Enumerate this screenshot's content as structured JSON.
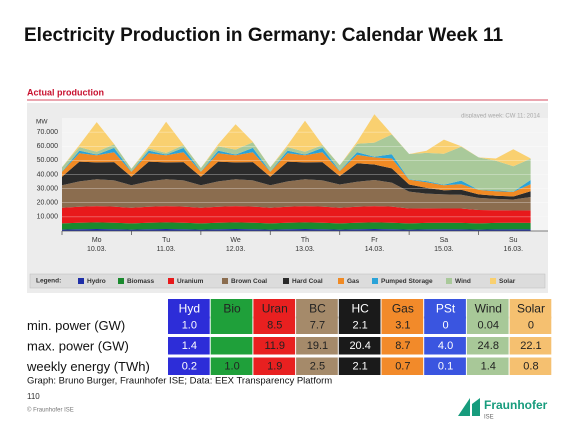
{
  "title": "Electricity Production in Germany: Calendar Week 11",
  "chart_data": {
    "type": "stacked_area",
    "subtitle": "Actual production",
    "annotation": "displayed week: CW 11; 2014",
    "y_label": "MW",
    "legend_title": "Legend:",
    "x_labels": [
      [
        "Mo",
        "10.03."
      ],
      [
        "Tu",
        "11.03."
      ],
      [
        "We",
        "12.03."
      ],
      [
        "Th",
        "13.03."
      ],
      [
        "Fr",
        "14.03."
      ],
      [
        "Sa",
        "15.03."
      ],
      [
        "Su",
        "16.03."
      ]
    ],
    "ylim": [
      0,
      80000
    ],
    "yticks": [
      {
        "value": 10000,
        "label": "10.000"
      },
      {
        "value": 20000,
        "label": "20.000"
      },
      {
        "value": 30000,
        "label": "30.000"
      },
      {
        "value": 40000,
        "label": "40.000"
      },
      {
        "value": 50000,
        "label": "50.000"
      },
      {
        "value": 60000,
        "label": "60.000"
      },
      {
        "value": 70000,
        "label": "70.000"
      }
    ],
    "grid": true,
    "series": [
      {
        "name": "Hydro",
        "color": "#1f2fa8",
        "values": [
          1000,
          1200,
          1400,
          1300,
          1000,
          1200,
          1400,
          1300,
          1000,
          1200,
          1400,
          1300,
          1000,
          1200,
          1400,
          1300,
          1000,
          1200,
          1400,
          1300,
          1000,
          1100,
          1200,
          1100,
          1000,
          1100,
          1200,
          1100
        ]
      },
      {
        "name": "Biomass",
        "color": "#1a8a2e",
        "values": [
          4400,
          4600,
          4700,
          4600,
          4400,
          4600,
          4700,
          4600,
          4400,
          4600,
          4700,
          4600,
          4400,
          4600,
          4700,
          4600,
          4400,
          4600,
          4700,
          4600,
          4400,
          4600,
          4700,
          4600,
          4400,
          4600,
          4700,
          4600
        ]
      },
      {
        "name": "Uranium",
        "color": "#e8191b",
        "values": [
          11000,
          11300,
          11500,
          11400,
          11000,
          11300,
          11500,
          11400,
          11000,
          11300,
          11500,
          11400,
          11000,
          11300,
          11500,
          11400,
          11000,
          11300,
          11500,
          11400,
          10500,
          10300,
          10000,
          10200,
          9500,
          9000,
          8600,
          8900
        ]
      },
      {
        "name": "Brown Coal",
        "color": "#8b6d4f",
        "values": [
          16000,
          18000,
          19000,
          18500,
          16000,
          18000,
          19000,
          18500,
          16000,
          18000,
          19000,
          18500,
          16000,
          18000,
          19000,
          18500,
          16500,
          17800,
          18500,
          17000,
          12000,
          10500,
          10000,
          9800,
          8500,
          8000,
          7800,
          9500
        ]
      },
      {
        "name": "Hard Coal",
        "color": "#2b2b2b",
        "values": [
          6000,
          14000,
          12000,
          13000,
          6000,
          14000,
          12000,
          13000,
          6000,
          14000,
          12000,
          13000,
          6000,
          14000,
          12000,
          13000,
          6000,
          13000,
          11000,
          10000,
          5000,
          4000,
          3000,
          3500,
          2500,
          2300,
          2100,
          4000
        ]
      },
      {
        "name": "Gas",
        "color": "#f08a24",
        "values": [
          3500,
          6000,
          5000,
          7000,
          3500,
          6000,
          5000,
          7000,
          3500,
          6000,
          5000,
          7000,
          3500,
          6000,
          5000,
          7000,
          3500,
          6000,
          5000,
          7000,
          3500,
          4000,
          3500,
          4000,
          3200,
          3100,
          3300,
          5000
        ]
      },
      {
        "name": "Pumped Storage",
        "color": "#2aa3d8",
        "values": [
          200,
          1800,
          500,
          3000,
          200,
          1800,
          500,
          3000,
          200,
          1800,
          500,
          3000,
          200,
          1800,
          500,
          3000,
          200,
          1800,
          500,
          3000,
          100,
          800,
          300,
          2500,
          0,
          700,
          200,
          3000
        ]
      },
      {
        "name": "Wind",
        "color": "#a9c99a",
        "values": [
          3000,
          2500,
          2000,
          2500,
          2000,
          1500,
          1200,
          2000,
          2500,
          3000,
          3500,
          4000,
          3000,
          2500,
          2000,
          2000,
          4000,
          6000,
          10000,
          14000,
          18000,
          20000,
          22000,
          24000,
          23000,
          21000,
          18000,
          15000
        ]
      },
      {
        "name": "Solar",
        "color": "#f9d070",
        "values": [
          0,
          1500,
          21000,
          300,
          0,
          1500,
          22000,
          300,
          0,
          1500,
          18000,
          300,
          0,
          1500,
          22000,
          300,
          0,
          1500,
          20000,
          300,
          0,
          1500,
          10000,
          300,
          0,
          1500,
          12000,
          300
        ]
      }
    ]
  },
  "table": {
    "header": [
      "Hyd",
      "Bio",
      "Uran",
      "BC",
      "HC",
      "Gas",
      "PSt",
      "Wind",
      "Solar"
    ],
    "colors": [
      "#2d2dd8",
      "#1fa03a",
      "#e82020",
      "#a58a6a",
      "#1a1a1a",
      "#f28a2a",
      "#3a55e0",
      "#a8c898",
      "#f5c070"
    ],
    "text_colors": [
      "#ffffff",
      "#222222",
      "#222222",
      "#222222",
      "#ffffff",
      "#222222",
      "#ffffff",
      "#222222",
      "#222222"
    ],
    "rows": [
      {
        "label": "min. power (GW)",
        "cells": [
          "1.0",
          null,
          "8.5",
          "7.7",
          "2.1",
          "3.1",
          "0",
          "0.04",
          "0"
        ]
      },
      {
        "label": "max. power (GW)",
        "cells": [
          "1.4",
          null,
          "11.9",
          "19.1",
          "20.4",
          "8.7",
          "4.0",
          "24.8",
          "22.1"
        ]
      },
      {
        "label": "weekly energy (TWh)",
        "cells": [
          "0.2",
          "1.0",
          "1.9",
          "2.5",
          "2.1",
          "0.7",
          "0.1",
          "1.4",
          "0.8"
        ]
      }
    ]
  },
  "footer": {
    "source": "Graph: Bruno Burger, Fraunhofer ISE; Data: EEX Transparency Platform",
    "page": "110",
    "copyright": "© Fraunhofer ISE",
    "logo": "Fraunhofer",
    "logo_sub": "ISE"
  }
}
